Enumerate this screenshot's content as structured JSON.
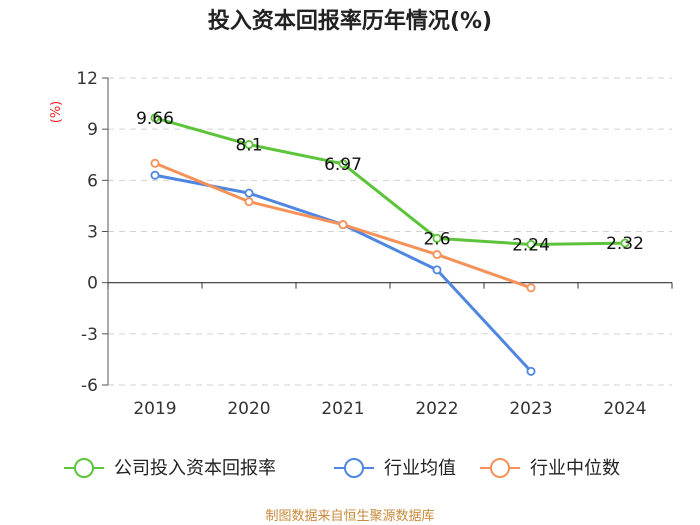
{
  "chart_data": {
    "type": "line",
    "title": "投入资本回报率历年情况(%)",
    "ylabel": "(%)",
    "xlabel": "",
    "categories": [
      "2019",
      "2020",
      "2021",
      "2022",
      "2023",
      "2024"
    ],
    "ylim": [
      -6,
      12
    ],
    "yticks": [
      12,
      9,
      6,
      3,
      0,
      -3,
      -6
    ],
    "ytick_labels": [
      "12",
      "9",
      "6",
      "3",
      "0",
      "-3",
      "-6"
    ],
    "grid": true,
    "legend_position": "bottom",
    "series": [
      {
        "name": "公司投入资本回报率",
        "color": "#5cc43a",
        "values": [
          9.66,
          8.1,
          6.97,
          2.6,
          2.24,
          2.32
        ],
        "labels": [
          "9.66",
          "8.1",
          "6.97",
          "2.6",
          "2.24",
          "2.32"
        ]
      },
      {
        "name": "行业均值",
        "color": "#4f86e0",
        "values": [
          6.3,
          5.25,
          3.4,
          0.75,
          -5.2,
          null
        ]
      },
      {
        "name": "行业中位数",
        "color": "#f5925a",
        "values": [
          7.0,
          4.75,
          3.4,
          1.65,
          -0.3,
          null
        ]
      }
    ],
    "source": "制图数据来自恒生聚源数据库"
  }
}
